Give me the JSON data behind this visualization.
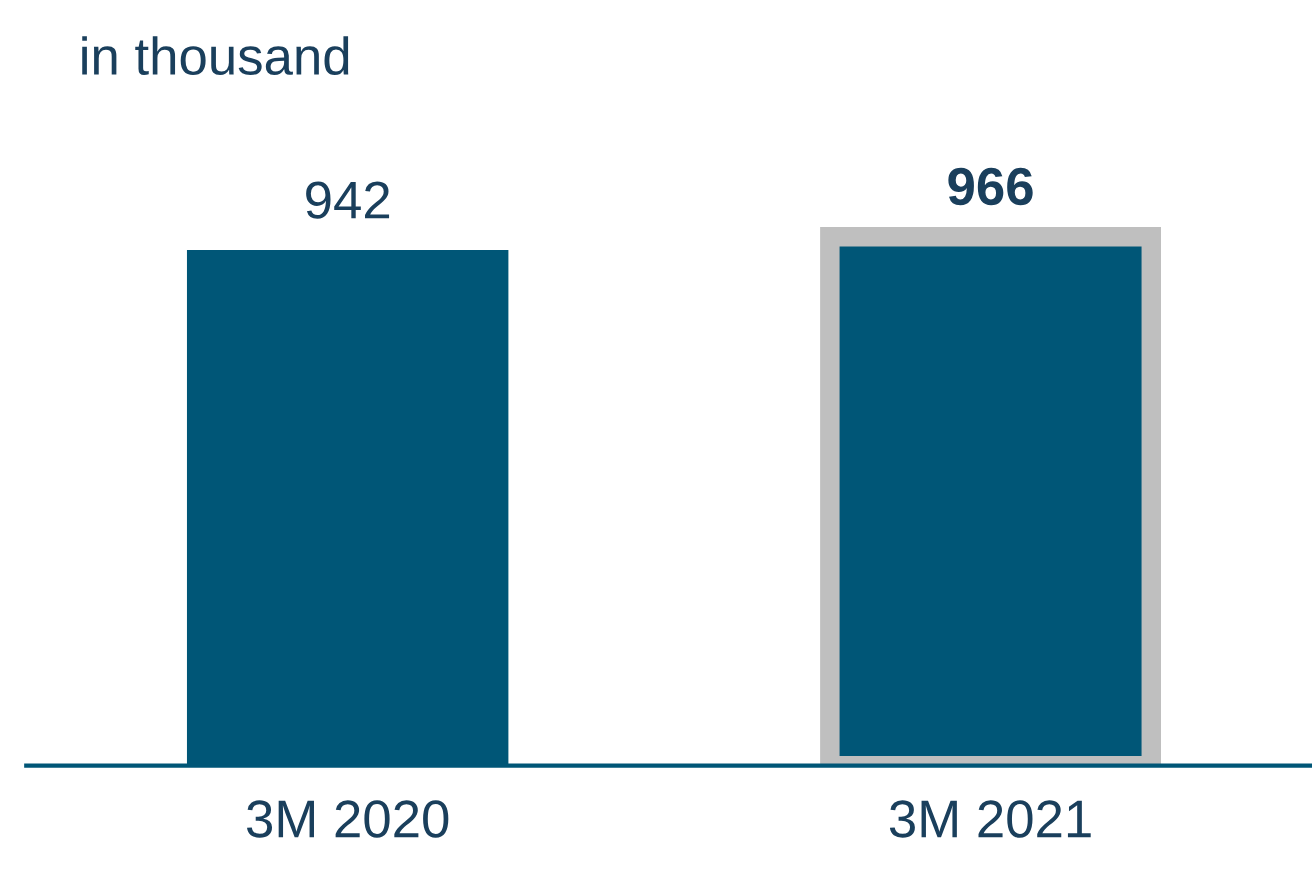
{
  "chart_data": {
    "type": "bar",
    "subtitle": "in thousand",
    "categories": [
      "3M 2020",
      "3M 2021"
    ],
    "values": [
      942,
      966
    ],
    "color": "#005677",
    "data_labels": true,
    "grid": false,
    "legend": false
  }
}
